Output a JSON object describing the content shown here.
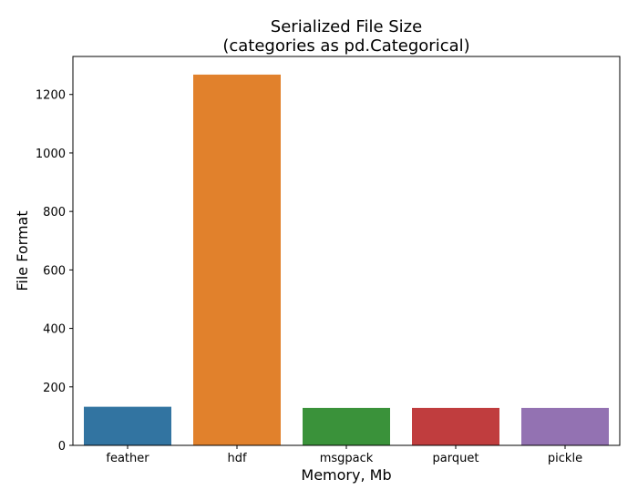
{
  "chart_data": {
    "type": "bar",
    "title": "Serialized File Size",
    "subtitle": "(categories as pd.Categorical)",
    "xlabel": "Memory, Mb",
    "ylabel": "File Format",
    "categories": [
      "feather",
      "hdf",
      "msgpack",
      "parquet",
      "pickle"
    ],
    "values": [
      132,
      1268,
      128,
      128,
      128
    ],
    "colors": [
      "#3274a1",
      "#e1812c",
      "#3a923a",
      "#c03d3e",
      "#9372b2"
    ],
    "ylim": [
      0,
      1330
    ],
    "yticks": [
      0,
      200,
      400,
      600,
      800,
      1000,
      1200
    ],
    "grid": false,
    "legend": "none"
  }
}
